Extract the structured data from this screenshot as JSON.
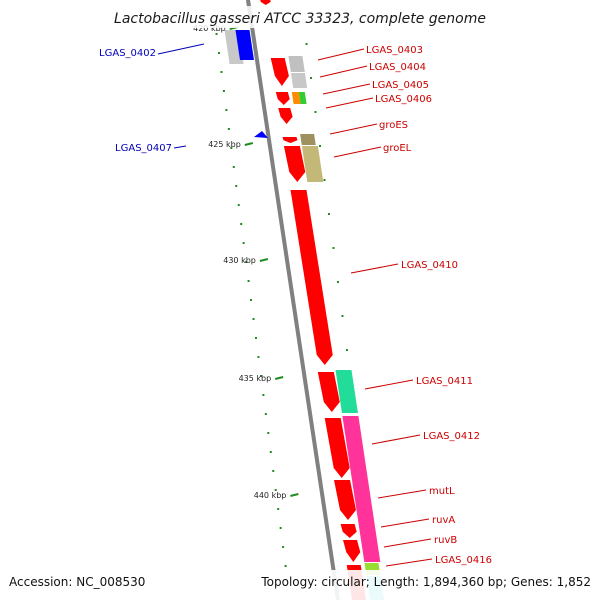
{
  "title": "Lactobacillus gasseri ATCC 33323, complete genome",
  "footer": {
    "accession": "Accession: NC_008530",
    "summary": "Topology: circular; Length: 1,894,360 bp; Genes: 1,852"
  },
  "colors": {
    "backbone": "#808080",
    "forward_label": "#cc0000",
    "reverse_label": "#0000bb",
    "tick": "#228b22"
  },
  "ticks": [
    {
      "label": "420 kbp"
    },
    {
      "label": "425 kbp"
    },
    {
      "label": "430 kbp"
    },
    {
      "label": "435 kbp"
    },
    {
      "label": "440 kbp"
    }
  ],
  "gene_labels": [
    {
      "text": "LGAS_0402",
      "strand": "reverse"
    },
    {
      "text": "LGAS_0407",
      "strand": "reverse"
    },
    {
      "text": "LGAS_0403",
      "strand": "forward"
    },
    {
      "text": "LGAS_0404",
      "strand": "forward"
    },
    {
      "text": "LGAS_0405",
      "strand": "forward"
    },
    {
      "text": "LGAS_0406",
      "strand": "forward"
    },
    {
      "text": "groES",
      "strand": "forward"
    },
    {
      "text": "groEL",
      "strand": "forward"
    },
    {
      "text": "LGAS_0410",
      "strand": "forward"
    },
    {
      "text": "LGAS_0411",
      "strand": "forward"
    },
    {
      "text": "LGAS_0412",
      "strand": "forward"
    },
    {
      "text": "mutL",
      "strand": "forward"
    },
    {
      "text": "ruvA",
      "strand": "forward"
    },
    {
      "text": "ruvB",
      "strand": "forward"
    },
    {
      "text": "LGAS_0416",
      "strand": "forward"
    }
  ]
}
